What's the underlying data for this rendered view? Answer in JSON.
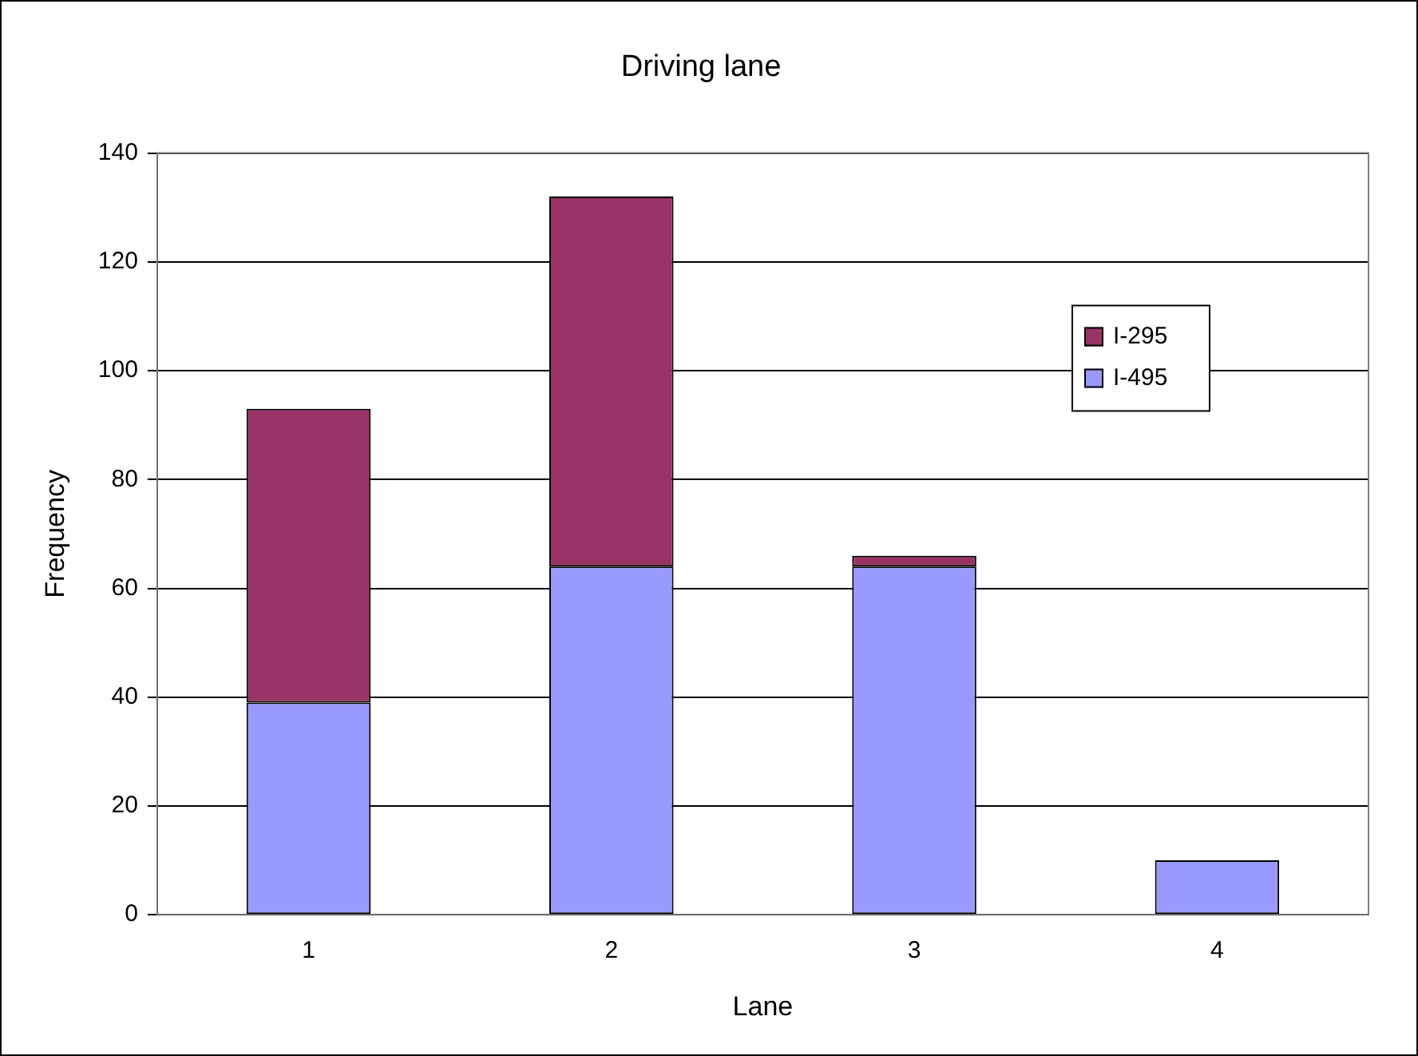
{
  "chart_data": {
    "type": "bar",
    "title": "Driving lane",
    "xlabel": "Lane",
    "ylabel": "Frequency",
    "categories": [
      "1",
      "2",
      "3",
      "4"
    ],
    "stacked": true,
    "series": [
      {
        "name": "I-495",
        "color": "#9999ff",
        "values": [
          39,
          64,
          64,
          10
        ]
      },
      {
        "name": "I-295",
        "color": "#993366",
        "values": [
          54,
          68,
          2,
          0
        ]
      }
    ],
    "ylim": [
      0,
      140
    ],
    "yticks": [
      0,
      20,
      40,
      60,
      80,
      100,
      120,
      140
    ],
    "grid": "y",
    "legend": "right"
  }
}
